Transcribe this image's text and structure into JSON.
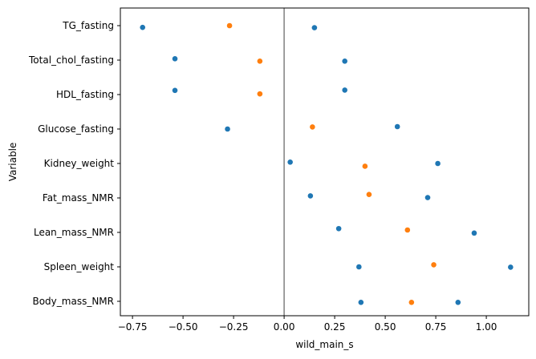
{
  "chart_data": {
    "type": "scatter",
    "xlabel": "wild_main_s",
    "ylabel": "Variable",
    "xlim": [
      -0.81,
      1.21
    ],
    "x_ticks": [
      -0.75,
      -0.5,
      -0.25,
      0.0,
      0.25,
      0.5,
      0.75,
      1.0
    ],
    "x_tick_labels": [
      "−0.75",
      "−0.50",
      "−0.25",
      "0.00",
      "0.25",
      "0.50",
      "0.75",
      "1.00"
    ],
    "categories": [
      "TG_fasting",
      "Total_chol_fasting",
      "HDL_fasting",
      "Glucose_fasting",
      "Kidney_weight",
      "Fat_mass_NMR",
      "Lean_mass_NMR",
      "Spleen_weight",
      "Body_mass_NMR"
    ],
    "reference_line_x": 0.0,
    "grid": false,
    "series": [
      {
        "color": "#1f77b4",
        "points": [
          {
            "category": "TG_fasting",
            "x": -0.7,
            "offset": 0.05
          },
          {
            "category": "TG_fasting",
            "x": 0.15,
            "offset": 0.06
          },
          {
            "category": "Total_chol_fasting",
            "x": -0.54,
            "offset": -0.04
          },
          {
            "category": "Total_chol_fasting",
            "x": 0.3,
            "offset": 0.03
          },
          {
            "category": "HDL_fasting",
            "x": -0.54,
            "offset": -0.12
          },
          {
            "category": "HDL_fasting",
            "x": 0.3,
            "offset": -0.13
          },
          {
            "category": "Glucose_fasting",
            "x": -0.28,
            "offset": 0.0
          },
          {
            "category": "Glucose_fasting",
            "x": 0.56,
            "offset": -0.07
          },
          {
            "category": "Kidney_weight",
            "x": 0.03,
            "offset": -0.04
          },
          {
            "category": "Kidney_weight",
            "x": 0.76,
            "offset": 0.0
          },
          {
            "category": "Fat_mass_NMR",
            "x": 0.13,
            "offset": -0.06
          },
          {
            "category": "Fat_mass_NMR",
            "x": 0.71,
            "offset": -0.01
          },
          {
            "category": "Lean_mass_NMR",
            "x": 0.27,
            "offset": -0.11
          },
          {
            "category": "Lean_mass_NMR",
            "x": 0.94,
            "offset": 0.02
          },
          {
            "category": "Spleen_weight",
            "x": 0.37,
            "offset": 0.0
          },
          {
            "category": "Spleen_weight",
            "x": 1.12,
            "offset": 0.01
          },
          {
            "category": "Body_mass_NMR",
            "x": 0.38,
            "offset": 0.03
          },
          {
            "category": "Body_mass_NMR",
            "x": 0.86,
            "offset": 0.03
          }
        ]
      },
      {
        "color": "#ff7f0e",
        "points": [
          {
            "category": "TG_fasting",
            "x": -0.27,
            "offset": 0.0
          },
          {
            "category": "Total_chol_fasting",
            "x": -0.12,
            "offset": 0.03
          },
          {
            "category": "HDL_fasting",
            "x": -0.12,
            "offset": -0.02
          },
          {
            "category": "Glucose_fasting",
            "x": 0.14,
            "offset": -0.06
          },
          {
            "category": "Kidney_weight",
            "x": 0.4,
            "offset": 0.08
          },
          {
            "category": "Fat_mass_NMR",
            "x": 0.42,
            "offset": -0.1
          },
          {
            "category": "Lean_mass_NMR",
            "x": 0.61,
            "offset": -0.07
          },
          {
            "category": "Spleen_weight",
            "x": 0.74,
            "offset": -0.06
          },
          {
            "category": "Body_mass_NMR",
            "x": 0.63,
            "offset": 0.03
          }
        ]
      }
    ]
  }
}
